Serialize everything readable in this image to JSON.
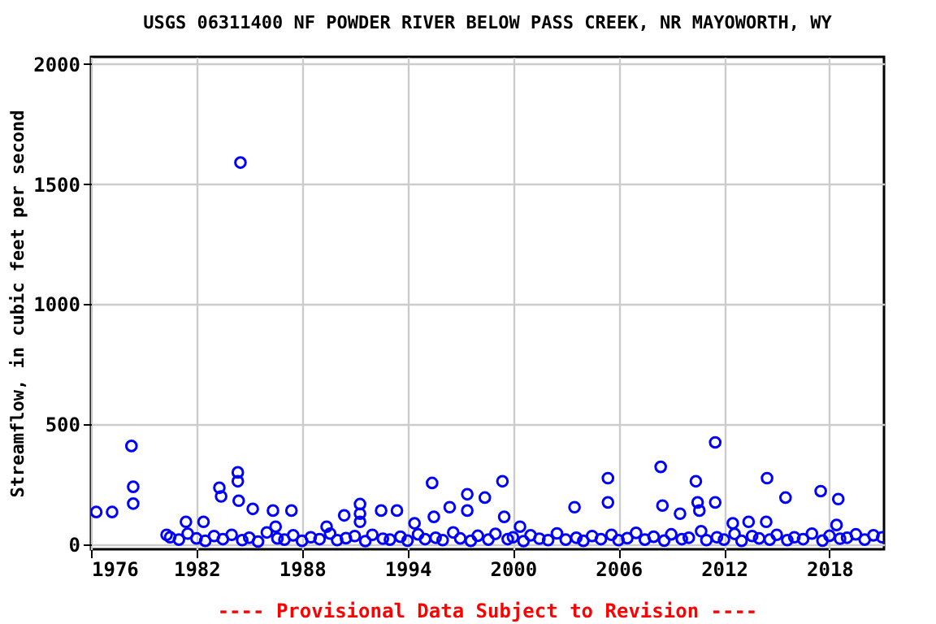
{
  "chart_data": {
    "type": "scatter",
    "title": "USGS 06311400 NF POWDER RIVER BELOW PASS CREEK, NR MAYOWORTH, WY",
    "ylabel": "Streamflow, in cubic feet per second",
    "annotations": [
      "---- Provisional Data Subject to Revision ----"
    ],
    "xlim": [
      1976,
      2021.1
    ],
    "xticks": [
      1976,
      1982,
      1988,
      1994,
      2000,
      2006,
      2012,
      2018
    ],
    "ylim": [
      -20,
      2030
    ],
    "yticks": [
      0,
      500,
      1000,
      1500,
      2000
    ],
    "grid": true,
    "marker": "circle",
    "series": [
      {
        "color": "#0000ff",
        "x": [
          1976.3,
          1977.2,
          1978.3,
          1978.4,
          1978.4,
          1984.5,
          1984.35,
          1984.35,
          1983.3,
          1983.4,
          1984.4,
          1985.2,
          1986.35,
          1987.4,
          1981.4,
          1982.4,
          1980.3,
          1986.5,
          1989.4,
          1990.4,
          1991.3,
          1991.3,
          1991.3,
          1992.5,
          1993.4,
          1994.4,
          1995.4,
          1995.5,
          1996.4,
          1997.4,
          1997.4,
          1998.4,
          1999.4,
          1999.5,
          2000.4,
          2003.5,
          2005.4,
          2005.4,
          2008.4,
          2008.5,
          2009.5,
          2010.4,
          2010.5,
          2010.6,
          2011.5,
          2011.5,
          2012.5,
          2013.4,
          2014.4,
          2014.45,
          2015.5,
          2017.5,
          2018.5,
          2018.4,
          1980.5,
          1981.0,
          1981.5,
          1982.0,
          1982.5,
          1983.0,
          1983.5,
          1984.0,
          1984.6,
          1985.0,
          1985.5,
          1986.0,
          1986.6,
          1987.0,
          1987.5,
          1988.0,
          1988.5,
          1989.0,
          1989.6,
          1990.0,
          1990.5,
          1991.0,
          1991.6,
          1992.0,
          1992.6,
          1993.0,
          1993.6,
          1994.0,
          1994.6,
          1995.0,
          1995.6,
          1996.0,
          1996.6,
          1997.0,
          1997.6,
          1998.0,
          1998.6,
          1999.0,
          1999.7,
          2000.0,
          2000.6,
          2001.0,
          2001.5,
          2002.0,
          2002.5,
          2003.0,
          2003.6,
          2004.0,
          2004.5,
          2005.0,
          2005.6,
          2006.0,
          2006.5,
          2007.0,
          2007.5,
          2008.0,
          2008.6,
          2009.0,
          2009.6,
          2010.0,
          2010.7,
          2011.0,
          2011.6,
          2012.0,
          2012.6,
          2013.0,
          2013.6,
          2014.0,
          2014.6,
          2015.0,
          2015.6,
          2016.0,
          2016.5,
          2017.0,
          2017.6,
          2018.0,
          2018.6,
          2019.0,
          2019.5,
          2020.0,
          2020.5,
          2021.0
        ],
        "values": [
          135,
          135,
          410,
          240,
          170,
          1590,
          300,
          263,
          236,
          200,
          182,
          148,
          141,
          141,
          94,
          94,
          40,
          74,
          74,
          121,
          168,
          128,
          94,
          141,
          141,
          88,
          256,
          115,
          155,
          209,
          141,
          195,
          263,
          115,
          74,
          155,
          276,
          175,
          323,
          162,
          128,
          263,
          175,
          141,
          425,
          175,
          88,
          94,
          94,
          276,
          195,
          222,
          189,
          81,
          30,
          20,
          45,
          25,
          15,
          35,
          22,
          40,
          18,
          28,
          12,
          50,
          25,
          20,
          38,
          15,
          30,
          22,
          45,
          18,
          26,
          35,
          14,
          40,
          24,
          20,
          32,
          16,
          42,
          22,
          28,
          18,
          50,
          25,
          15,
          36,
          20,
          44,
          22,
          30,
          14,
          38,
          24,
          18,
          46,
          20,
          28,
          15,
          35,
          22,
          40,
          18,
          26,
          48,
          20,
          32,
          16,
          42,
          22,
          28,
          55,
          18,
          30,
          20,
          44,
          15,
          35,
          25,
          20,
          40,
          18,
          30,
          22,
          45,
          16,
          36,
          24,
          28,
          42,
          20,
          38,
          30
        ]
      }
    ]
  }
}
